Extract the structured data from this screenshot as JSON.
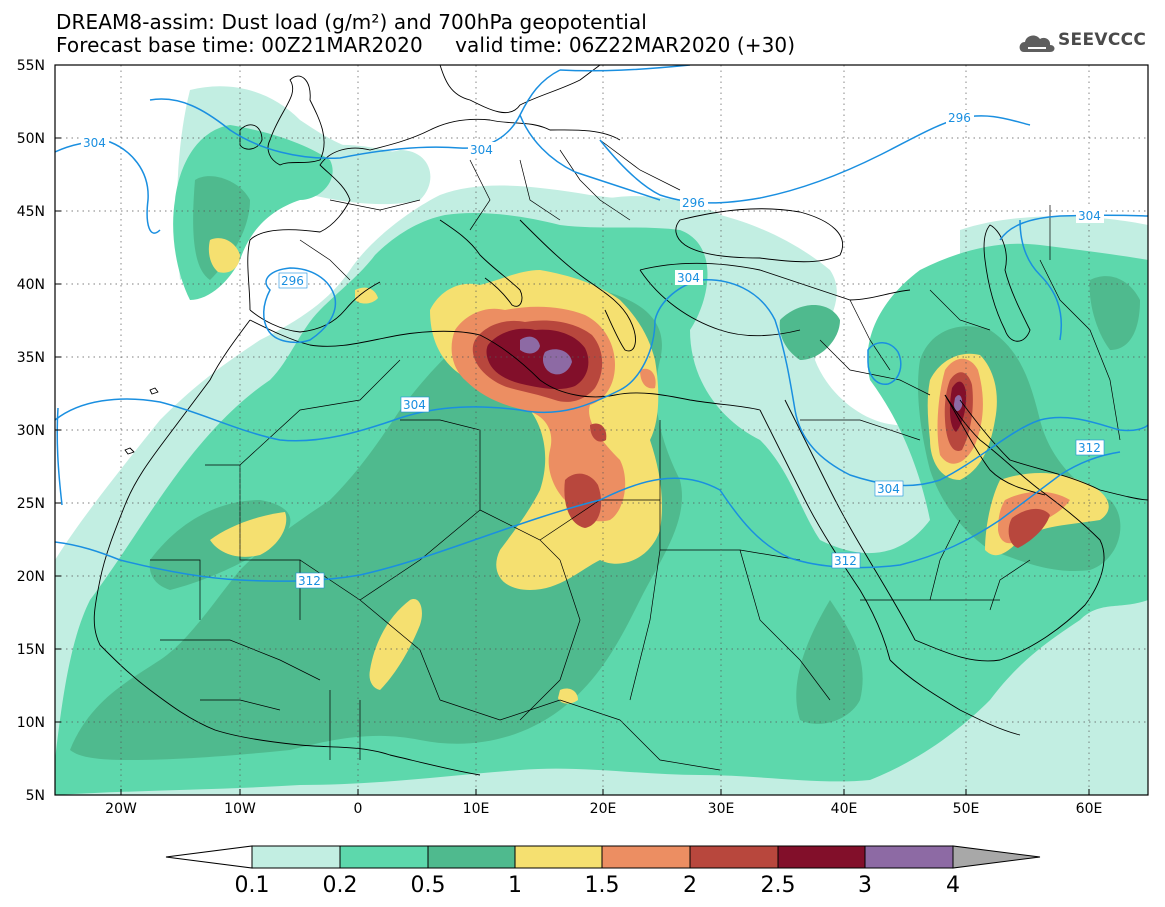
{
  "title": {
    "line1": "DREAM8-assim: Dust load (g/m²) and 700hPa geopotential",
    "line2": "Forecast base time: 00Z21MAR2020     valid time: 06Z22MAR2020 (+30)"
  },
  "brand": {
    "name": "SEEVCCC",
    "icon": "cloud-logo-icon"
  },
  "axes": {
    "lon_labels": [
      "20W",
      "10W",
      "0",
      "10E",
      "20E",
      "30E",
      "40E",
      "50E",
      "60E"
    ],
    "lat_labels": [
      "55N",
      "50N",
      "45N",
      "40N",
      "35N",
      "30N",
      "25N",
      "20N",
      "15N",
      "10N",
      "5N"
    ],
    "lon_range": [
      -25,
      65
    ],
    "lat_range": [
      5,
      55
    ],
    "grid": "dotted"
  },
  "contours": {
    "color": "#1a8fe0",
    "labels": [
      "304",
      "304",
      "296",
      "296",
      "304",
      "304",
      "296",
      "312",
      "304",
      "312",
      "312",
      "304"
    ]
  },
  "colorbar": {
    "labels": [
      "0.1",
      "0.2",
      "0.5",
      "1",
      "1.5",
      "2",
      "2.5",
      "3",
      "4"
    ],
    "colors": [
      "#ffffff",
      "#c2eee2",
      "#5dd8ac",
      "#4fba8e",
      "#f5e070",
      "#ec8e62",
      "#b8473d",
      "#820f2a",
      "#8d6aa4",
      "#a8a8a8"
    ]
  },
  "palette": {
    "l1": "#c2eee2",
    "l2": "#5dd8ac",
    "l3": "#4fba8e",
    "l4": "#f5e070",
    "l5": "#ec8e62",
    "l6": "#b8473d",
    "l7": "#820f2a",
    "l8": "#8d6aa4"
  }
}
